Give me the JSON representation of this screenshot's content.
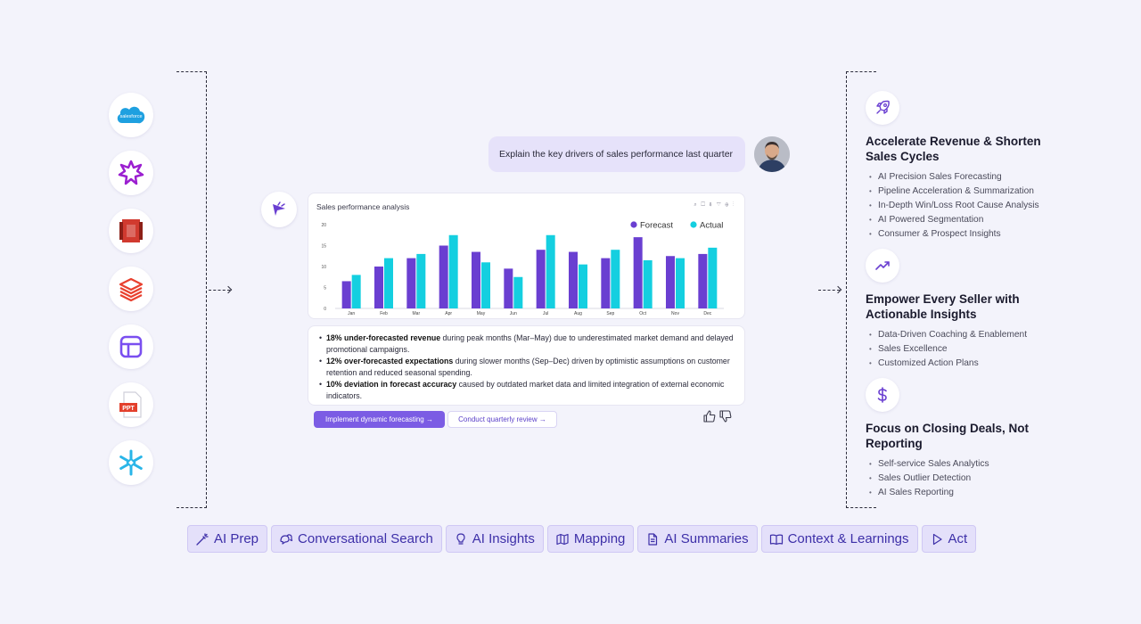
{
  "integrations": [
    {
      "name": "salesforce-icon",
      "label": "salesforce"
    },
    {
      "name": "burst-icon"
    },
    {
      "name": "aws-s3-icon"
    },
    {
      "name": "databricks-icon"
    },
    {
      "name": "table-layout-icon"
    },
    {
      "name": "ppt-file-icon",
      "label": "PPT"
    },
    {
      "name": "snowflake-icon"
    }
  ],
  "chat": {
    "user_message": "Explain the key drivers of sales performance last quarter",
    "chart_title": "Sales performance analysis",
    "chart_tools": "⌕ ☐ ⇩ ▽ ⊕ ⋮",
    "insights": [
      {
        "bold": "18% under-forecasted revenue",
        "text": " during peak months (Mar–May) due to underestimated market demand and delayed promotional campaigns."
      },
      {
        "bold": "12% over-forecasted expectations",
        "text": " during slower months (Sep–Dec) driven by optimistic assumptions on customer retention and reduced seasonal spending."
      },
      {
        "bold": "10% deviation in forecast accuracy",
        "text": " caused by outdated market data and limited integration of external economic indicators."
      }
    ],
    "action_primary": "Implement dynamic forecasting →",
    "action_secondary": "Conduct quarterly review →"
  },
  "chart_data": {
    "type": "bar",
    "categories": [
      "Jan",
      "Feb",
      "Mar",
      "Apr",
      "May",
      "Jun",
      "Jul",
      "Aug",
      "Sep",
      "Oct",
      "Nov",
      "Dec"
    ],
    "series": [
      {
        "name": "Forecast",
        "color": "#6a3fd1",
        "values": [
          6.5,
          10,
          12,
          15,
          13.5,
          9.5,
          14,
          13.5,
          12,
          17,
          12.5,
          13
        ]
      },
      {
        "name": "Actual",
        "color": "#14cfe0",
        "values": [
          8,
          12,
          13,
          17.5,
          11,
          7.5,
          17.5,
          10.5,
          14,
          11.5,
          12,
          14.5
        ]
      }
    ],
    "yticks": [
      0,
      5,
      10,
      15,
      20
    ],
    "ylim": [
      0,
      20
    ],
    "legend_position": "top-right"
  },
  "features": [
    {
      "icon": "rocket-icon",
      "title": "Accelerate Revenue & Shorten Sales Cycles",
      "items": [
        "AI Precision Sales Forecasting",
        "Pipeline Acceleration & Summarization",
        "In-Depth Win/Loss Root Cause Analysis",
        "AI Powered Segmentation",
        "Consumer & Prospect Insights"
      ]
    },
    {
      "icon": "trending-up-icon",
      "title": "Empower Every Seller with Actionable Insights",
      "items": [
        "Data-Driven Coaching & Enablement",
        "Sales Excellence",
        "Customized Action Plans"
      ]
    },
    {
      "icon": "dollar-icon",
      "title": "Focus on Closing Deals, Not Reporting",
      "items": [
        "Self-service Sales Analytics",
        "Sales Outlier Detection",
        "AI Sales Reporting"
      ]
    }
  ],
  "pills": [
    {
      "icon": "magic-wand-icon",
      "label": "AI Prep"
    },
    {
      "icon": "chat-bubbles-icon",
      "label": "Conversational Search"
    },
    {
      "icon": "lightbulb-icon",
      "label": "AI Insights"
    },
    {
      "icon": "map-icon",
      "label": "Mapping"
    },
    {
      "icon": "document-icon",
      "label": "AI Summaries"
    },
    {
      "icon": "book-icon",
      "label": "Context & Learnings"
    },
    {
      "icon": "play-icon",
      "label": "Act"
    }
  ]
}
